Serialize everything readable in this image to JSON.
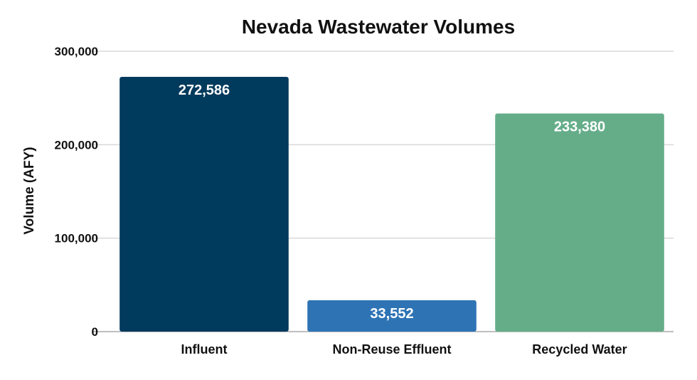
{
  "chart_data": {
    "type": "bar",
    "title": "Nevada Wastewater Volumes",
    "xlabel": "",
    "ylabel": "Volume (AFY)",
    "ylim": [
      0,
      300000
    ],
    "yticks": [
      0,
      100000,
      200000,
      300000
    ],
    "ytick_labels": [
      "0",
      "100,000",
      "200,000",
      "300,000"
    ],
    "categories": [
      "Influent",
      "Non-Reuse Effluent",
      "Recycled Water"
    ],
    "values": [
      272586,
      33552,
      233380
    ],
    "data_labels": [
      "272,586",
      "33,552",
      "233,380"
    ],
    "colors": [
      "#003a5c",
      "#2e74b5",
      "#65ad89"
    ],
    "grid": true,
    "legend": "none"
  }
}
